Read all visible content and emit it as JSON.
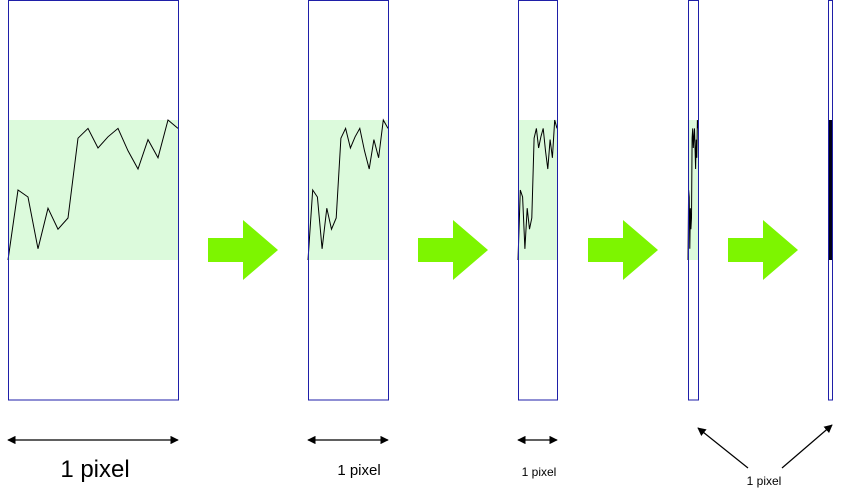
{
  "figure": {
    "labels": [
      "1 pixel",
      "1 pixel",
      "1 pixel",
      "1 pixel"
    ],
    "colors": {
      "frame_border": "#1f1fa8",
      "data_band": "#dcfadc",
      "series_line": "#000000",
      "arrow_fill": "#7df500",
      "dimension_line": "#000000"
    },
    "shared_series": [
      0.0,
      0.5,
      0.45,
      0.08,
      0.37,
      0.22,
      0.3,
      0.87,
      0.94,
      0.8,
      0.88,
      0.94,
      0.78,
      0.65,
      0.86,
      0.73,
      1.0,
      0.94
    ]
  }
}
